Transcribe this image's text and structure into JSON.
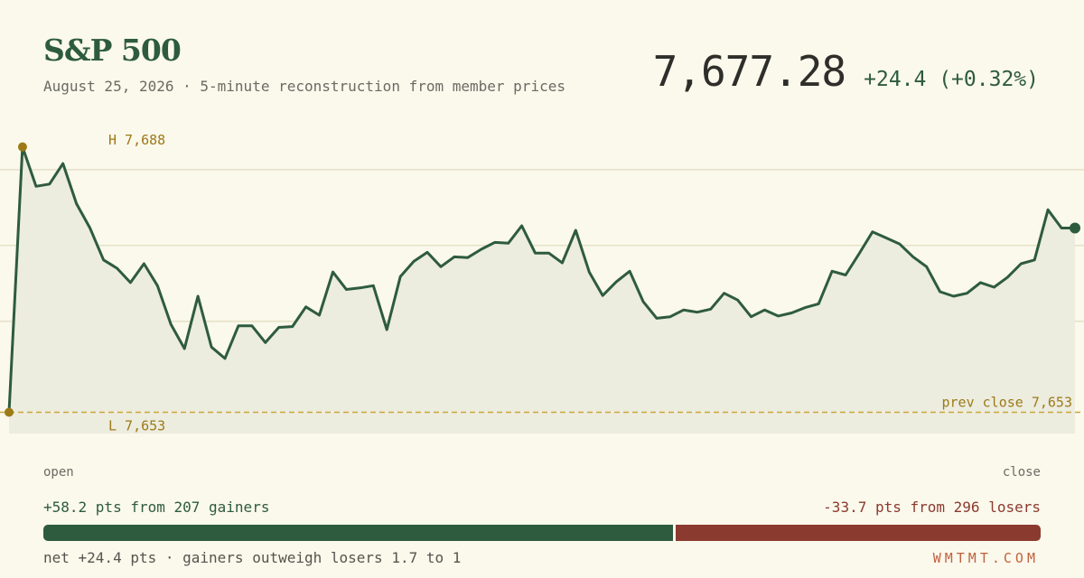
{
  "header": {
    "title": "S&P 500",
    "subtitle": "August 25, 2026 · 5-minute reconstruction from member prices",
    "price": "7,677.28",
    "change": "+24.4 (+0.32%)"
  },
  "chart_data": {
    "type": "area",
    "y": [
      7653.0,
      7688.0,
      7682.8,
      7683.1,
      7685.8,
      7680.5,
      7677.3,
      7673.1,
      7672.0,
      7670.1,
      7672.6,
      7669.7,
      7664.6,
      7661.4,
      7668.3,
      7661.6,
      7660.1,
      7664.4,
      7664.4,
      7662.2,
      7664.2,
      7664.3,
      7666.9,
      7665.8,
      7671.5,
      7669.2,
      7669.4,
      7669.7,
      7663.9,
      7670.9,
      7672.9,
      7674.1,
      7672.2,
      7673.5,
      7673.4,
      7674.5,
      7675.4,
      7675.3,
      7677.6,
      7674.0,
      7674.0,
      7672.7,
      7677.0,
      7671.5,
      7668.4,
      7670.2,
      7671.6,
      7667.6,
      7665.4,
      7665.6,
      7666.5,
      7666.2,
      7666.6,
      7668.7,
      7667.8,
      7665.6,
      7666.5,
      7665.7,
      7666.1,
      7666.8,
      7667.3,
      7671.6,
      7671.1,
      7673.9,
      7676.8,
      7676.0,
      7675.2,
      7673.5,
      7672.2,
      7668.9,
      7668.3,
      7668.7,
      7670.1,
      7669.5,
      7670.8,
      7672.6,
      7673.1,
      7679.7,
      7677.3,
      7677.3
    ],
    "y_range": [
      7650.2,
      7690.7
    ],
    "high_label": "H 7,688",
    "low_label": "L 7,653",
    "prev_close_label": "prev close 7,653",
    "prev_close": 7653.0,
    "gridlines": [
      7665.0,
      7675.0,
      7685.0
    ]
  },
  "axis": {
    "start_label": "open",
    "end_label": "close"
  },
  "breadth": {
    "gainers_text": "+58.2 pts from 207 gainers",
    "losers_text": "-33.7 pts from 296 losers",
    "gainers_pts": 58.2,
    "losers_pts": 33.7,
    "net_text": "net +24.4 pts · gainers outweigh losers 1.7 to 1"
  },
  "brand": "WMTMT.COM",
  "colors": {
    "line": "#2e5b3e",
    "fill": "#ececdf",
    "marker": "#9c7a17",
    "grid": "#e6e2c8",
    "prev_close": "#c9a73a",
    "gain": "#2e5b3e",
    "loss": "#8b3a2f"
  }
}
